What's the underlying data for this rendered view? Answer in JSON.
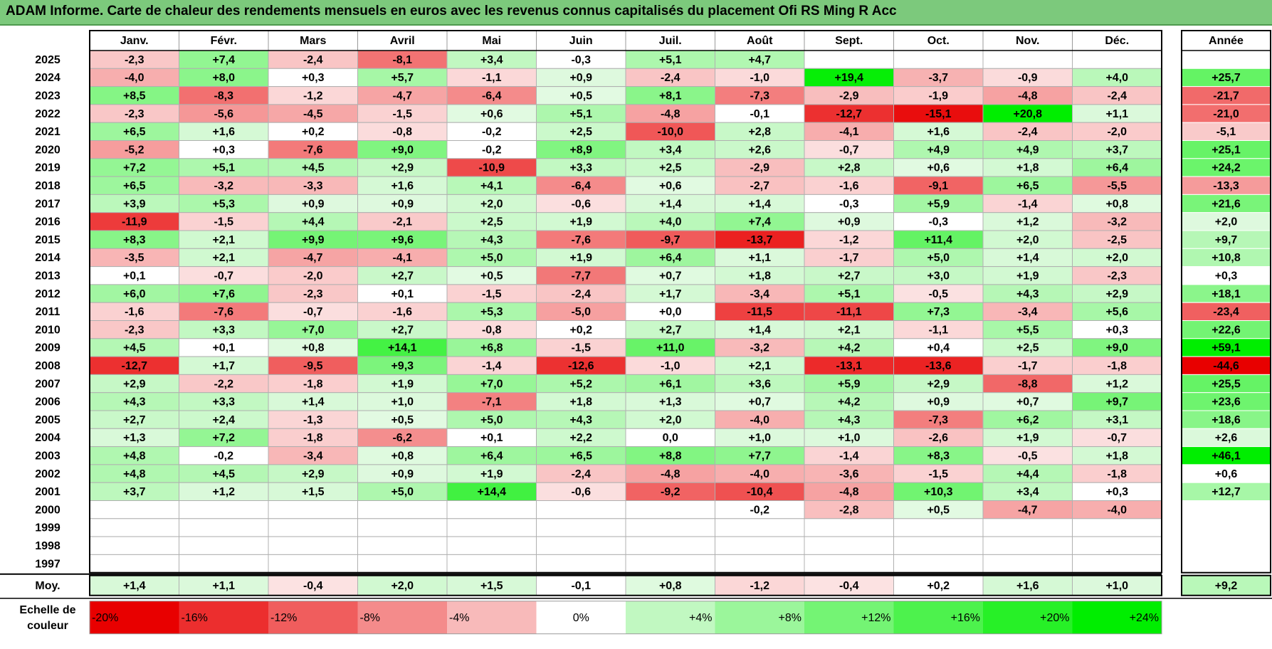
{
  "title": "ADAM Informe. Carte de chaleur des rendements mensuels en euros avec les revenus connus capitalisés du placement Ofi RS Ming R Acc",
  "chart_data": {
    "type": "heatmap",
    "months": [
      "Janv.",
      "Févr.",
      "Mars",
      "Avril",
      "Mai",
      "Juin",
      "Juil.",
      "Août",
      "Sept.",
      "Oct.",
      "Nov.",
      "Déc."
    ],
    "year_header": "Année",
    "rows": [
      {
        "year": "2025",
        "months": [
          "-2,3",
          "+7,4",
          "-2,4",
          "-8,1",
          "+3,4",
          "-0,3",
          "+5,1",
          "+4,7",
          "",
          "",
          "",
          ""
        ],
        "annual": ""
      },
      {
        "year": "2024",
        "months": [
          "-4,0",
          "+8,0",
          "+0,3",
          "+5,7",
          "-1,1",
          "+0,9",
          "-2,4",
          "-1,0",
          "+19,4",
          "-3,7",
          "-0,9",
          "+4,0"
        ],
        "annual": "+25,7"
      },
      {
        "year": "2023",
        "months": [
          "+8,5",
          "-8,3",
          "-1,2",
          "-4,7",
          "-6,4",
          "+0,5",
          "+8,1",
          "-7,3",
          "-2,9",
          "-1,9",
          "-4,8",
          "-2,4"
        ],
        "annual": "-21,7"
      },
      {
        "year": "2022",
        "months": [
          "-2,3",
          "-5,6",
          "-4,5",
          "-1,5",
          "+0,6",
          "+5,1",
          "-4,8",
          "-0,1",
          "-12,7",
          "-15,1",
          "+20,8",
          "+1,1"
        ],
        "annual": "-21,0"
      },
      {
        "year": "2021",
        "months": [
          "+6,5",
          "+1,6",
          "+0,2",
          "-0,8",
          "-0,2",
          "+2,5",
          "-10,0",
          "+2,8",
          "-4,1",
          "+1,6",
          "-2,4",
          "-2,0"
        ],
        "annual": "-5,1"
      },
      {
        "year": "2020",
        "months": [
          "-5,2",
          "+0,3",
          "-7,6",
          "+9,0",
          "-0,2",
          "+8,9",
          "+3,4",
          "+2,6",
          "-0,7",
          "+4,9",
          "+4,9",
          "+3,7"
        ],
        "annual": "+25,1"
      },
      {
        "year": "2019",
        "months": [
          "+7,2",
          "+5,1",
          "+4,5",
          "+2,9",
          "-10,9",
          "+3,3",
          "+2,5",
          "-2,9",
          "+2,8",
          "+0,6",
          "+1,8",
          "+6,4"
        ],
        "annual": "+24,2"
      },
      {
        "year": "2018",
        "months": [
          "+6,5",
          "-3,2",
          "-3,3",
          "+1,6",
          "+4,1",
          "-6,4",
          "+0,6",
          "-2,7",
          "-1,6",
          "-9,1",
          "+6,5",
          "-5,5"
        ],
        "annual": "-13,3"
      },
      {
        "year": "2017",
        "months": [
          "+3,9",
          "+5,3",
          "+0,9",
          "+0,9",
          "+2,0",
          "-0,6",
          "+1,4",
          "+1,4",
          "-0,3",
          "+5,9",
          "-1,4",
          "+0,8"
        ],
        "annual": "+21,6"
      },
      {
        "year": "2016",
        "months": [
          "-11,9",
          "-1,5",
          "+4,4",
          "-2,1",
          "+2,5",
          "+1,9",
          "+4,0",
          "+7,4",
          "+0,9",
          "-0,3",
          "+1,2",
          "-3,2"
        ],
        "annual": "+2,0"
      },
      {
        "year": "2015",
        "months": [
          "+8,3",
          "+2,1",
          "+9,9",
          "+9,6",
          "+4,3",
          "-7,6",
          "-9,7",
          "-13,7",
          "-1,2",
          "+11,4",
          "+2,0",
          "-2,5"
        ],
        "annual": "+9,7"
      },
      {
        "year": "2014",
        "months": [
          "-3,5",
          "+2,1",
          "-4,7",
          "-4,1",
          "+5,0",
          "+1,9",
          "+6,4",
          "+1,1",
          "-1,7",
          "+5,0",
          "+1,4",
          "+2,0"
        ],
        "annual": "+10,8"
      },
      {
        "year": "2013",
        "months": [
          "+0,1",
          "-0,7",
          "-2,0",
          "+2,7",
          "+0,5",
          "-7,7",
          "+0,7",
          "+1,8",
          "+2,7",
          "+3,0",
          "+1,9",
          "-2,3"
        ],
        "annual": "+0,3"
      },
      {
        "year": "2012",
        "months": [
          "+6,0",
          "+7,6",
          "-2,3",
          "+0,1",
          "-1,5",
          "-2,4",
          "+1,7",
          "-3,4",
          "+5,1",
          "-0,5",
          "+4,3",
          "+2,9"
        ],
        "annual": "+18,1"
      },
      {
        "year": "2011",
        "months": [
          "-1,6",
          "-7,6",
          "-0,7",
          "-1,6",
          "+5,3",
          "-5,0",
          "+0,0",
          "-11,5",
          "-11,1",
          "+7,3",
          "-3,4",
          "+5,6"
        ],
        "annual": "-23,4"
      },
      {
        "year": "2010",
        "months": [
          "-2,3",
          "+3,3",
          "+7,0",
          "+2,7",
          "-0,8",
          "+0,2",
          "+2,7",
          "+1,4",
          "+2,1",
          "-1,1",
          "+5,5",
          "+0,3"
        ],
        "annual": "+22,6"
      },
      {
        "year": "2009",
        "months": [
          "+4,5",
          "+0,1",
          "+0,8",
          "+14,1",
          "+6,8",
          "-1,5",
          "+11,0",
          "-3,2",
          "+4,2",
          "+0,4",
          "+2,5",
          "+9,0"
        ],
        "annual": "+59,1"
      },
      {
        "year": "2008",
        "months": [
          "-12,7",
          "+1,7",
          "-9,5",
          "+9,3",
          "-1,4",
          "-12,6",
          "-1,0",
          "+2,1",
          "-13,1",
          "-13,6",
          "-1,7",
          "-1,8"
        ],
        "annual": "-44,6"
      },
      {
        "year": "2007",
        "months": [
          "+2,9",
          "-2,2",
          "-1,8",
          "+1,9",
          "+7,0",
          "+5,2",
          "+6,1",
          "+3,6",
          "+5,9",
          "+2,9",
          "-8,8",
          "+1,2"
        ],
        "annual": "+25,5"
      },
      {
        "year": "2006",
        "months": [
          "+4,3",
          "+3,3",
          "+1,4",
          "+1,0",
          "-7,1",
          "+1,8",
          "+1,3",
          "+0,7",
          "+4,2",
          "+0,9",
          "+0,7",
          "+9,7"
        ],
        "annual": "+23,6"
      },
      {
        "year": "2005",
        "months": [
          "+2,7",
          "+2,4",
          "-1,3",
          "+0,5",
          "+5,0",
          "+4,3",
          "+2,0",
          "-4,0",
          "+4,3",
          "-7,3",
          "+6,2",
          "+3,1"
        ],
        "annual": "+18,6"
      },
      {
        "year": "2004",
        "months": [
          "+1,3",
          "+7,2",
          "-1,8",
          "-6,2",
          "+0,1",
          "+2,2",
          "0,0",
          "+1,0",
          "+1,0",
          "-2,6",
          "+1,9",
          "-0,7"
        ],
        "annual": "+2,6"
      },
      {
        "year": "2003",
        "months": [
          "+4,8",
          "-0,2",
          "-3,4",
          "+0,8",
          "+6,4",
          "+6,5",
          "+8,8",
          "+7,7",
          "-1,4",
          "+8,3",
          "-0,5",
          "+1,8"
        ],
        "annual": "+46,1"
      },
      {
        "year": "2002",
        "months": [
          "+4,8",
          "+4,5",
          "+2,9",
          "+0,9",
          "+1,9",
          "-2,4",
          "-4,8",
          "-4,0",
          "-3,6",
          "-1,5",
          "+4,4",
          "-1,8"
        ],
        "annual": "+0,6"
      },
      {
        "year": "2001",
        "months": [
          "+3,7",
          "+1,2",
          "+1,5",
          "+5,0",
          "+14,4",
          "-0,6",
          "-9,2",
          "-10,4",
          "-4,8",
          "+10,3",
          "+3,4",
          "+0,3"
        ],
        "annual": "+12,7"
      },
      {
        "year": "2000",
        "months": [
          "",
          "",
          "",
          "",
          "",
          "",
          "",
          "-0,2",
          "-2,8",
          "+0,5",
          "-4,7",
          "-4,0"
        ],
        "annual": ""
      },
      {
        "year": "1999",
        "months": [
          "",
          "",
          "",
          "",
          "",
          "",
          "",
          "",
          "",
          "",
          "",
          ""
        ],
        "annual": ""
      },
      {
        "year": "1998",
        "months": [
          "",
          "",
          "",
          "",
          "",
          "",
          "",
          "",
          "",
          "",
          "",
          ""
        ],
        "annual": ""
      },
      {
        "year": "1997",
        "months": [
          "",
          "",
          "",
          "",
          "",
          "",
          "",
          "",
          "",
          "",
          "",
          ""
        ],
        "annual": ""
      }
    ],
    "average": {
      "label": "Moy.",
      "months": [
        "+1,4",
        "+1,1",
        "-0,4",
        "+2,0",
        "+1,5",
        "-0,1",
        "+0,8",
        "-1,2",
        "-0,4",
        "+0,2",
        "+1,6",
        "+1,0"
      ],
      "annual": "+9,2"
    },
    "legend": {
      "label_line1": "Echelle de",
      "label_line2": "couleur",
      "steps": [
        {
          "label": "-20%",
          "value": -20
        },
        {
          "label": "-16%",
          "value": -16
        },
        {
          "label": "-12%",
          "value": -12
        },
        {
          "label": "-8%",
          "value": -8
        },
        {
          "label": "-4%",
          "value": -4
        },
        {
          "label": "0%",
          "value": 0
        },
        {
          "label": "+4%",
          "value": 4
        },
        {
          "label": "+8%",
          "value": 8
        },
        {
          "label": "+12%",
          "value": 12
        },
        {
          "label": "+16%",
          "value": 16
        },
        {
          "label": "+20%",
          "value": 20
        },
        {
          "label": "+24%",
          "value": 24
        }
      ]
    },
    "monthly_scale": {
      "neg_full": -16,
      "pos_full": 20
    },
    "annual_scale": {
      "neg_full": -40,
      "pos_full": 45
    }
  }
}
